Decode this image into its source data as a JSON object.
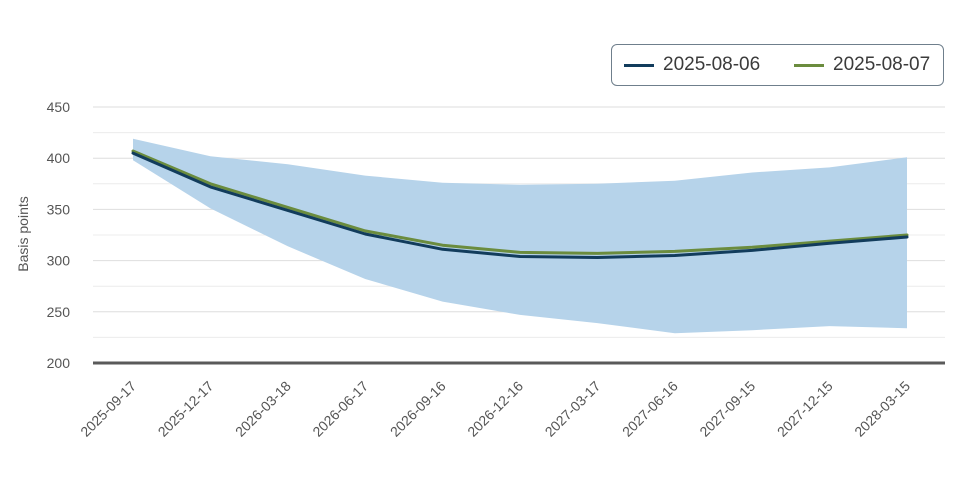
{
  "chart_data": {
    "type": "line",
    "title": "",
    "xlabel": "",
    "ylabel": "Basis points",
    "ylim": [
      200,
      450
    ],
    "yticks": [
      200,
      250,
      300,
      350,
      400,
      450
    ],
    "grid": true,
    "legend_position": "top-right",
    "categories": [
      "2025-09-17",
      "2025-12-17",
      "2026-03-18",
      "2026-06-17",
      "2026-09-16",
      "2026-12-16",
      "2027-03-17",
      "2027-06-16",
      "2027-09-15",
      "2027-12-15",
      "2028-03-15"
    ],
    "series": [
      {
        "name": "2025-08-06",
        "color": "#123c5c",
        "values": [
          405,
          372,
          349,
          326,
          311,
          304,
          303,
          305,
          310,
          317,
          323
        ]
      },
      {
        "name": "2025-08-07",
        "color": "#6b8c3e",
        "values": [
          407,
          375,
          352,
          329,
          315,
          308,
          307,
          309,
          313,
          319,
          325
        ]
      }
    ],
    "band": {
      "color": "#b6d3ea",
      "upper": [
        419,
        402,
        394,
        383,
        376,
        374,
        375,
        378,
        386,
        391,
        401
      ],
      "lower": [
        398,
        351,
        314,
        282,
        260,
        247,
        239,
        229,
        232,
        236,
        234
      ]
    }
  }
}
